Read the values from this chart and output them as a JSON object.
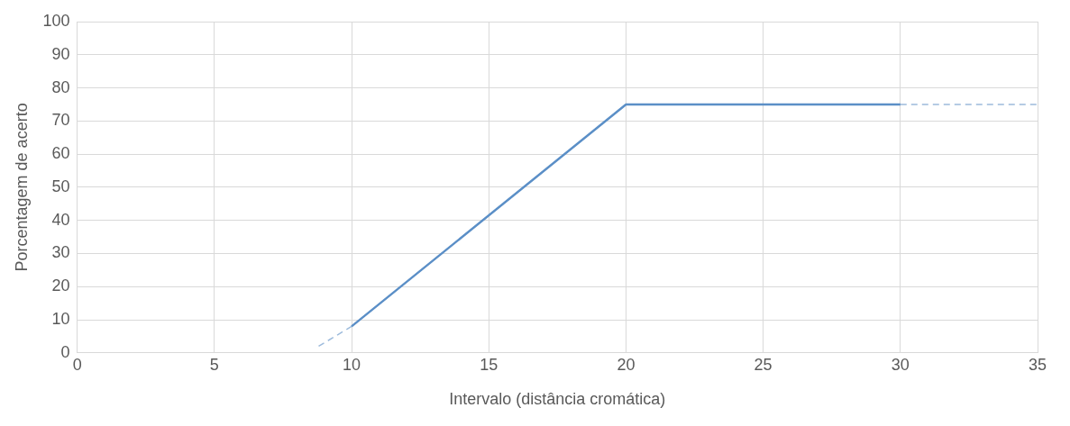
{
  "chart_data": {
    "type": "line",
    "xlabel": "Intervalo (distância cromática)",
    "ylabel": "Porcentagem de acerto",
    "series": [
      {
        "color": "#5b8fc7",
        "x": [
          10,
          20,
          30
        ],
        "values": [
          8,
          75,
          75
        ]
      },
      {
        "color": "#9dbbdc",
        "x": [
          8.8,
          10
        ],
        "values": [
          2,
          8
        ],
        "line_style": "dashed"
      },
      {
        "color": "#9dbbdc",
        "x": [
          30,
          35
        ],
        "values": [
          75,
          75
        ],
        "line_style": "dashed"
      }
    ],
    "xlim": [
      0,
      35
    ],
    "xticks": [
      0,
      5,
      10,
      15,
      20,
      25,
      30,
      35
    ],
    "ylim": [
      0,
      100
    ],
    "yticks": [
      0,
      10,
      20,
      30,
      40,
      50,
      60,
      70,
      80,
      90,
      100
    ],
    "grid": true,
    "legend": false,
    "marker": "none",
    "line_style": "solid"
  }
}
